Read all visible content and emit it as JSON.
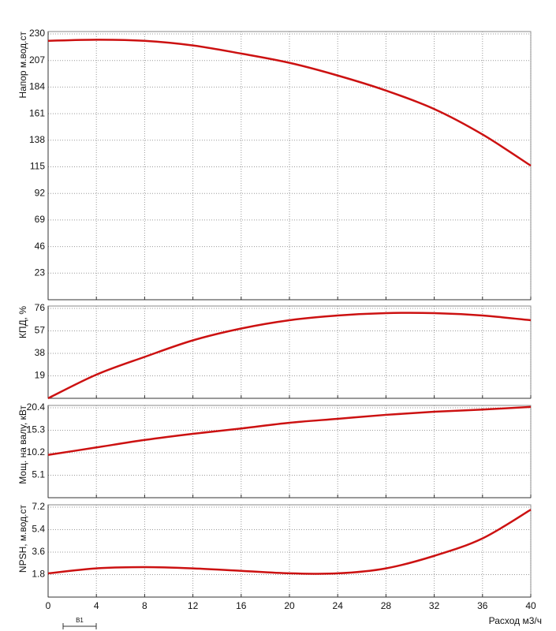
{
  "chart_data": [
    {
      "type": "line",
      "ylabel": "Напор м.вод.ст",
      "x": [
        0,
        4,
        8,
        12,
        16,
        20,
        24,
        28,
        32,
        36,
        40
      ],
      "xlim": [
        0,
        40
      ],
      "ylim": [
        0,
        230
      ],
      "yticks": [
        23,
        46,
        69,
        92,
        115,
        138,
        161,
        184,
        207,
        230
      ],
      "grid": true,
      "series": [
        {
          "color": "#cc1111",
          "values": [
            224,
            225,
            224,
            220,
            213,
            205,
            194,
            181,
            165,
            143,
            116
          ]
        }
      ]
    },
    {
      "type": "line",
      "ylabel": "КПД, %",
      "x": [
        0,
        4,
        8,
        12,
        16,
        20,
        24,
        28,
        32,
        36,
        40
      ],
      "xlim": [
        0,
        40
      ],
      "ylim": [
        0,
        76
      ],
      "yticks": [
        19,
        38,
        57,
        76
      ],
      "grid": true,
      "series": [
        {
          "color": "#cc1111",
          "values": [
            0,
            20,
            35,
            49,
            59,
            66,
            70,
            72,
            72,
            70,
            66
          ]
        }
      ]
    },
    {
      "type": "line",
      "ylabel": "Мощ. на валу, кВт",
      "x": [
        0,
        4,
        8,
        12,
        16,
        20,
        24,
        28,
        32,
        36,
        40
      ],
      "xlim": [
        0,
        40
      ],
      "ylim": [
        0,
        20.4
      ],
      "yticks": [
        5.1,
        10.2,
        15.3,
        20.4
      ],
      "grid": true,
      "series": [
        {
          "color": "#cc1111",
          "values": [
            9.7,
            11.4,
            13.1,
            14.5,
            15.7,
            17.0,
            17.9,
            18.8,
            19.5,
            20.0,
            20.6
          ]
        }
      ]
    },
    {
      "type": "line",
      "ylabel": "NPSH, м.вод.ст",
      "xlabel": "Расход м3/ч",
      "x": [
        0,
        4,
        8,
        12,
        16,
        20,
        24,
        28,
        32,
        36,
        40
      ],
      "xlim": [
        0,
        40
      ],
      "ylim": [
        0,
        7.2
      ],
      "yticks": [
        1.8,
        3.6,
        5.4,
        7.2
      ],
      "xticks": [
        0,
        4,
        8,
        12,
        16,
        20,
        24,
        28,
        32,
        36,
        40
      ],
      "grid": true,
      "series": [
        {
          "color": "#cc1111",
          "values": [
            1.9,
            2.3,
            2.4,
            2.3,
            2.1,
            1.9,
            1.9,
            2.3,
            3.3,
            4.7,
            7.0
          ]
        }
      ]
    }
  ],
  "scale_label": "B1"
}
